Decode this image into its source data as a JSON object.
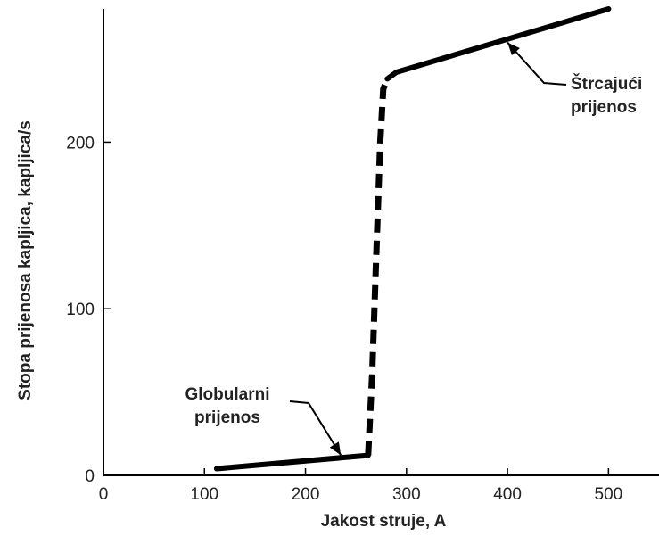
{
  "chart_data": {
    "type": "line",
    "title": "",
    "xlabel": "Jakost struje, A",
    "ylabel": "Stopa prijenosa kapljica, kapljica/s",
    "xlim": [
      0,
      550
    ],
    "ylim": [
      0,
      280
    ],
    "x_ticks": [
      0,
      100,
      200,
      300,
      400,
      500
    ],
    "y_ticks": [
      0,
      100,
      200
    ],
    "grid": false,
    "legend": "none",
    "series": [
      {
        "style": "solid",
        "x": [
          112,
          262
        ],
        "y": [
          4,
          12
        ]
      },
      {
        "style": "dashed",
        "x": [
          262,
          266,
          270,
          274,
          277,
          281
        ],
        "y": [
          12,
          60,
          130,
          200,
          232,
          238
        ]
      },
      {
        "style": "solid",
        "x": [
          281,
          290,
          500
        ],
        "y": [
          238,
          242,
          280
        ]
      }
    ],
    "annotations": [
      {
        "lines": [
          "Globularni",
          "prijenos"
        ],
        "point_x": 235,
        "point_y": 10
      },
      {
        "lines": [
          "Štrcajući",
          "prijenos"
        ],
        "point_x": 400,
        "point_y": 262
      }
    ],
    "line_color": "#000000"
  }
}
